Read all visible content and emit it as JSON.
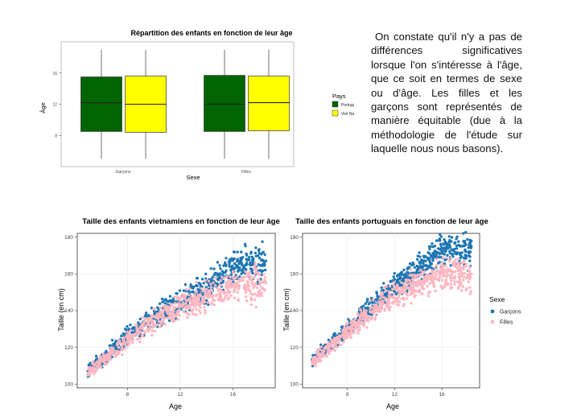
{
  "paragraph": {
    "text": "On constate qu'il n'y a pas de différences significatives lorsque l'on s'intéresse à l'âge, que ce soit en termes de sexe ou d'âge. Les filles et les garçons sont représentés de manière équitable (due à la méthodologie de l'étude sur laquelle nous nous basons)."
  },
  "colors": {
    "portugal": "#006400",
    "vietnam": "#ffff00",
    "garcons": "#1f77b4",
    "filles": "#ffb6c1",
    "panel_bg": "#ffffff",
    "grid": "#ebebeb"
  },
  "chart_data": [
    {
      "type": "box",
      "title": "Répartition des enfants en fonction de leur âge",
      "xlabel": "Sexe",
      "ylabel": "Âge",
      "categories": [
        "Garçons",
        "Filles"
      ],
      "ylim": [
        4,
        20
      ],
      "yticks": [
        8,
        12,
        16
      ],
      "legend": {
        "title": "Pays",
        "position": "right",
        "entries": [
          "Portugal",
          "Viet Nam"
        ]
      },
      "series": [
        {
          "name": "Portugal",
          "boxes": [
            {
              "min": 5,
              "q1": 8.5,
              "median": 12.2,
              "q3": 15.5,
              "max": 19
            },
            {
              "min": 5,
              "q1": 8.5,
              "median": 12.0,
              "q3": 15.7,
              "max": 19
            }
          ]
        },
        {
          "name": "Viet Nam",
          "boxes": [
            {
              "min": 5,
              "q1": 8.4,
              "median": 12.0,
              "q3": 15.6,
              "max": 19
            },
            {
              "min": 5,
              "q1": 8.6,
              "median": 12.2,
              "q3": 15.6,
              "max": 19
            }
          ]
        }
      ]
    },
    {
      "type": "scatter",
      "title": "Taille des enfants vietnamiens en fonction de leur âge",
      "xlabel": "Age",
      "ylabel": "Taille (en cm)",
      "xlim": [
        4.2,
        19.2
      ],
      "ylim": [
        98,
        182
      ],
      "xticks": [
        8,
        12,
        16
      ],
      "yticks": [
        100,
        120,
        140,
        160,
        180
      ],
      "series": [
        {
          "name": "Garçons",
          "x": [
            5,
            8,
            11,
            14,
            16,
            18.5
          ],
          "y": [
            107,
            126,
            141,
            152,
            163,
            167
          ]
        },
        {
          "name": "Filles",
          "x": [
            5,
            8,
            11,
            14,
            16,
            18.5
          ],
          "y": [
            106,
            124,
            139,
            148,
            154,
            155
          ]
        }
      ]
    },
    {
      "type": "scatter",
      "title": "Taille des enfants portuguais en fonction de leur âge",
      "xlabel": "Age",
      "ylabel": "Taille (en cm)",
      "xlim": [
        4.2,
        19.2
      ],
      "ylim": [
        98,
        182
      ],
      "xticks": [
        8,
        12,
        16
      ],
      "yticks": [
        100,
        120,
        140,
        160,
        180
      ],
      "legend": {
        "title": "Sexe",
        "position": "right",
        "entries": [
          "Garçons",
          "Filles"
        ]
      },
      "series": [
        {
          "name": "Garçons",
          "x": [
            5,
            8,
            11,
            14,
            16,
            18.5
          ],
          "y": [
            113,
            130,
            148,
            163,
            172,
            175
          ]
        },
        {
          "name": "Filles",
          "x": [
            5,
            8,
            11,
            14,
            16,
            18.5
          ],
          "y": [
            112,
            128,
            145,
            155,
            160,
            160
          ]
        }
      ]
    }
  ]
}
